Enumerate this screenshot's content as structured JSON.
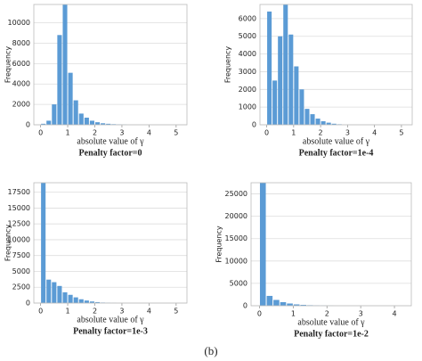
{
  "chart_data": [
    {
      "type": "histogram",
      "title": "Penalty factor=0",
      "xlabel": "absolute value of γ",
      "ylabel": "Frequency",
      "color": "#5b9bd5",
      "bins": [
        0,
        0.2,
        0.4,
        0.6,
        0.8,
        1.0,
        1.2,
        1.4,
        1.6,
        1.8,
        2.0,
        2.2,
        2.4,
        2.6,
        2.8,
        3.0,
        3.2
      ],
      "values": [
        100,
        400,
        2000,
        8800,
        11800,
        5100,
        2400,
        1100,
        700,
        400,
        250,
        150,
        100,
        60,
        40,
        20
      ],
      "xlim": [
        -0.25,
        5.4
      ],
      "xticks": [
        0,
        1,
        2,
        3,
        4,
        5
      ],
      "ylim": [
        0,
        11800
      ],
      "yticks": [
        0,
        2000,
        4000,
        6000,
        8000,
        10000
      ],
      "grid": true
    },
    {
      "type": "histogram",
      "title": "Penalty factor=1e-4",
      "xlabel": "absolute value of γ",
      "ylabel": "Frequency",
      "color": "#5b9bd5",
      "bins": [
        0,
        0.2,
        0.4,
        0.6,
        0.8,
        1.0,
        1.2,
        1.4,
        1.6,
        1.8,
        2.0,
        2.2,
        2.4,
        2.6,
        2.8
      ],
      "values": [
        6400,
        2500,
        5000,
        6800,
        5100,
        3300,
        2000,
        900,
        600,
        350,
        200,
        120,
        60,
        30
      ],
      "xlim": [
        -0.25,
        5.4
      ],
      "xticks": [
        0,
        1,
        2,
        3,
        4,
        5
      ],
      "ylim": [
        0,
        6800
      ],
      "yticks": [
        0,
        1000,
        2000,
        3000,
        4000,
        5000,
        6000
      ],
      "grid": true
    },
    {
      "type": "histogram",
      "title": "Penalty factor=1e-3",
      "xlabel": "absolute value of γ",
      "ylabel": "Frequency",
      "color": "#5b9bd5",
      "bins": [
        0,
        0.2,
        0.4,
        0.6,
        0.8,
        1.0,
        1.2,
        1.4,
        1.6,
        1.8,
        2.0,
        2.2,
        2.4,
        2.6,
        2.8
      ],
      "values": [
        19000,
        3700,
        3300,
        2700,
        1700,
        1300,
        900,
        600,
        400,
        250,
        150,
        80,
        40,
        20
      ],
      "xlim": [
        -0.25,
        5.4
      ],
      "xticks": [
        0,
        1,
        2,
        3,
        4,
        5
      ],
      "ylim": [
        0,
        19000
      ],
      "yticks": [
        0,
        2500,
        5000,
        7500,
        10000,
        12500,
        15000,
        17500
      ],
      "grid": true
    },
    {
      "type": "histogram",
      "title": "Penalty factor=1e-2",
      "xlabel": "absolute value of γ",
      "ylabel": "Frequency",
      "color": "#5b9bd5",
      "bins": [
        0,
        0.2,
        0.4,
        0.6,
        0.8,
        1.0,
        1.2,
        1.4,
        1.6,
        1.8,
        2.0,
        2.2
      ],
      "values": [
        27500,
        2200,
        1300,
        800,
        500,
        300,
        200,
        120,
        70,
        40,
        20
      ],
      "xlim": [
        -0.25,
        4.5
      ],
      "xticks": [
        0,
        1,
        2,
        3,
        4
      ],
      "ylim": [
        0,
        27500
      ],
      "yticks": [
        0,
        5000,
        10000,
        15000,
        20000,
        25000
      ],
      "grid": true
    }
  ],
  "caption": "(b)"
}
